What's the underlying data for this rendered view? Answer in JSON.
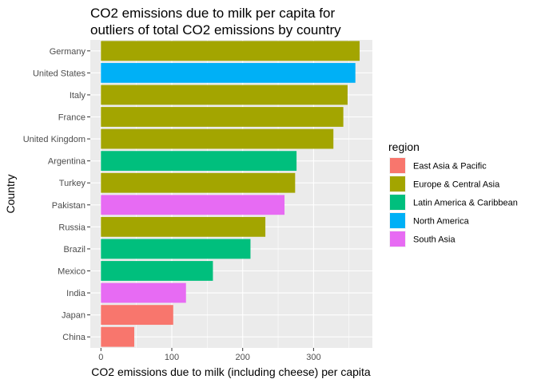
{
  "chart_data": {
    "type": "bar",
    "orientation": "horizontal",
    "title": "CO2 emissions due to milk per capita for\noutliers of total CO2 emissions by country",
    "xlabel": "CO2 emissions due to milk (including cheese) per capita",
    "ylabel": "Country",
    "xlim": [
      -15,
      383
    ],
    "xticks": [
      0,
      100,
      200,
      300
    ],
    "grid": true,
    "legend": {
      "title": "region",
      "placement": "right",
      "entries": [
        {
          "name": "East Asia & Pacific",
          "color": "#F8766D"
        },
        {
          "name": "Europe & Central Asia",
          "color": "#A3A500"
        },
        {
          "name": "Latin America & Caribbean",
          "color": "#00BF7D"
        },
        {
          "name": "North America",
          "color": "#00B0F6"
        },
        {
          "name": "South Asia",
          "color": "#E76BF3"
        }
      ]
    },
    "bars": [
      {
        "country": "Germany",
        "value": 365,
        "region": "Europe & Central Asia"
      },
      {
        "country": "United States",
        "value": 359,
        "region": "North America"
      },
      {
        "country": "Italy",
        "value": 348,
        "region": "Europe & Central Asia"
      },
      {
        "country": "France",
        "value": 342,
        "region": "Europe & Central Asia"
      },
      {
        "country": "United Kingdom",
        "value": 328,
        "region": "Europe & Central Asia"
      },
      {
        "country": "Argentina",
        "value": 276,
        "region": "Latin America & Caribbean"
      },
      {
        "country": "Turkey",
        "value": 274,
        "region": "Europe & Central Asia"
      },
      {
        "country": "Pakistan",
        "value": 259,
        "region": "South Asia"
      },
      {
        "country": "Russia",
        "value": 232,
        "region": "Europe & Central Asia"
      },
      {
        "country": "Brazil",
        "value": 211,
        "region": "Latin America & Caribbean"
      },
      {
        "country": "Mexico",
        "value": 158,
        "region": "Latin America & Caribbean"
      },
      {
        "country": "India",
        "value": 120,
        "region": "South Asia"
      },
      {
        "country": "Japan",
        "value": 102,
        "region": "East Asia & Pacific"
      },
      {
        "country": "China",
        "value": 47,
        "region": "East Asia & Pacific"
      }
    ]
  }
}
